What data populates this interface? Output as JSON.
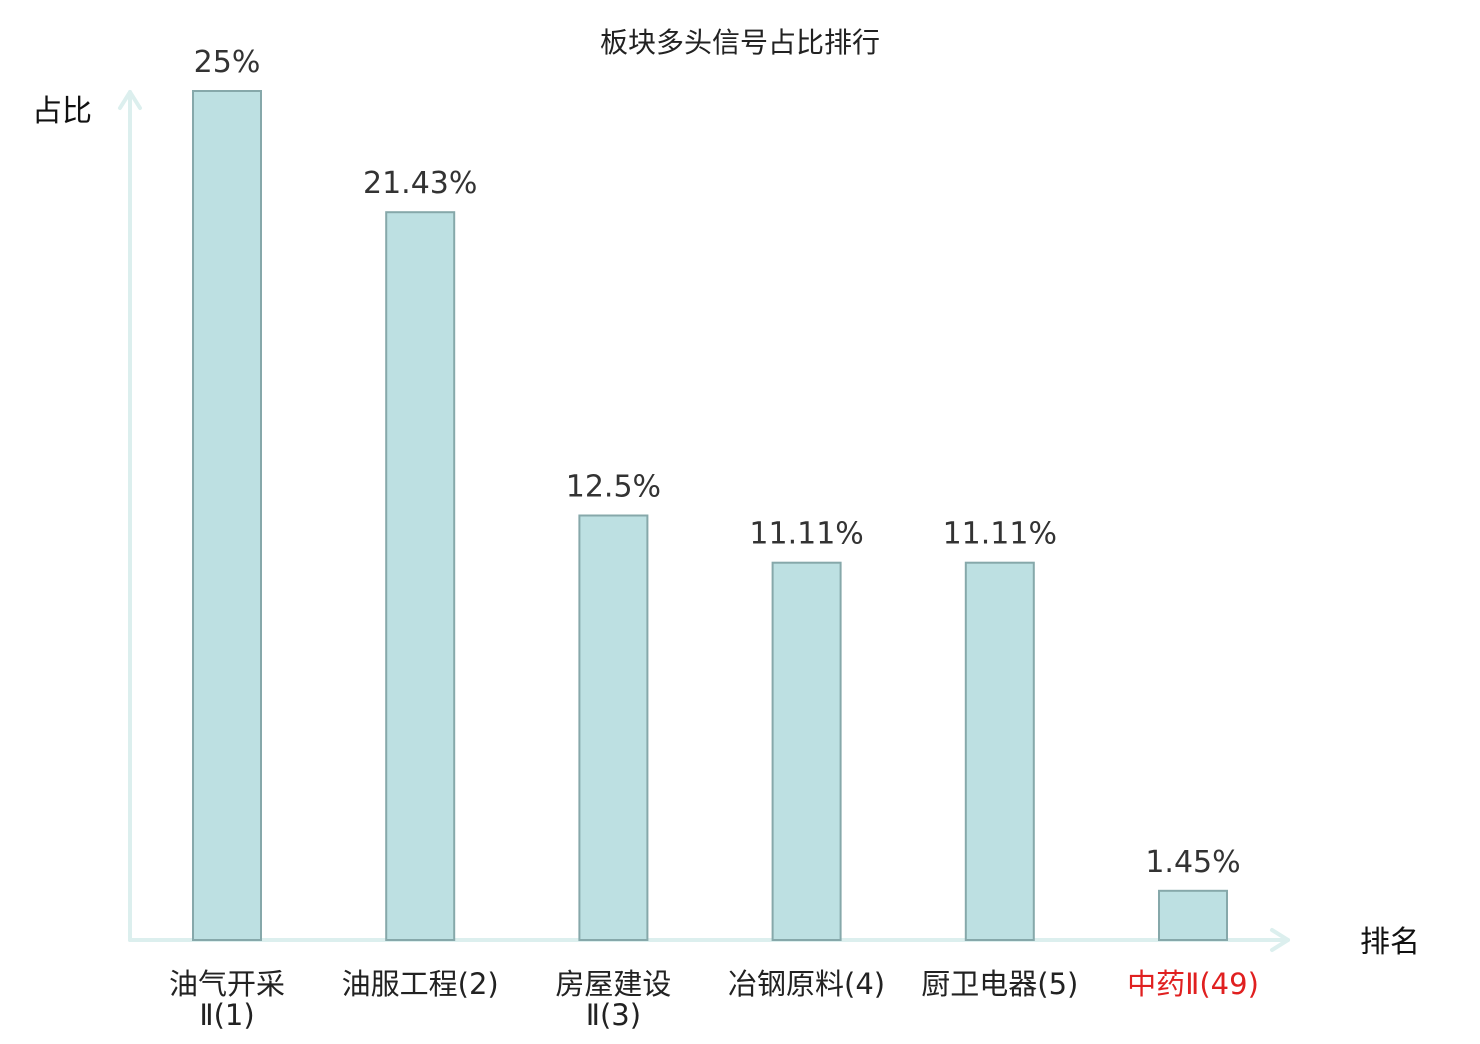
{
  "chart_data": {
    "type": "bar",
    "title": "板块多头信号占比排行",
    "ylabel": "占比",
    "xlabel": "排名",
    "ylim": [
      0,
      25
    ],
    "grid": false,
    "categories": [
      {
        "label": "油气开采Ⅱ(1)",
        "lines": [
          "油气开采",
          "Ⅱ(1)"
        ],
        "highlight": false
      },
      {
        "label": "油服工程(2)",
        "lines": [
          "油服工程(2)"
        ],
        "highlight": false
      },
      {
        "label": "房屋建设Ⅱ(3)",
        "lines": [
          "房屋建设",
          "Ⅱ(3)"
        ],
        "highlight": false
      },
      {
        "label": "冶钢原料(4)",
        "lines": [
          "冶钢原料(4)"
        ],
        "highlight": false
      },
      {
        "label": "厨卫电器(5)",
        "lines": [
          "厨卫电器(5)"
        ],
        "highlight": false
      },
      {
        "label": "中药Ⅱ(49)",
        "lines": [
          "中药Ⅱ(49)"
        ],
        "highlight": true
      }
    ],
    "values": [
      25,
      21.43,
      12.5,
      11.11,
      11.11,
      1.45
    ],
    "value_labels": [
      "25%",
      "21.43%",
      "12.5%",
      "11.11%",
      "11.11%",
      "1.45%"
    ],
    "colors": {
      "bar_fill": "#bde0e2",
      "bar_stroke": "#86a8aa",
      "axis": "#dcefee",
      "highlight_text": "#e02020"
    }
  }
}
